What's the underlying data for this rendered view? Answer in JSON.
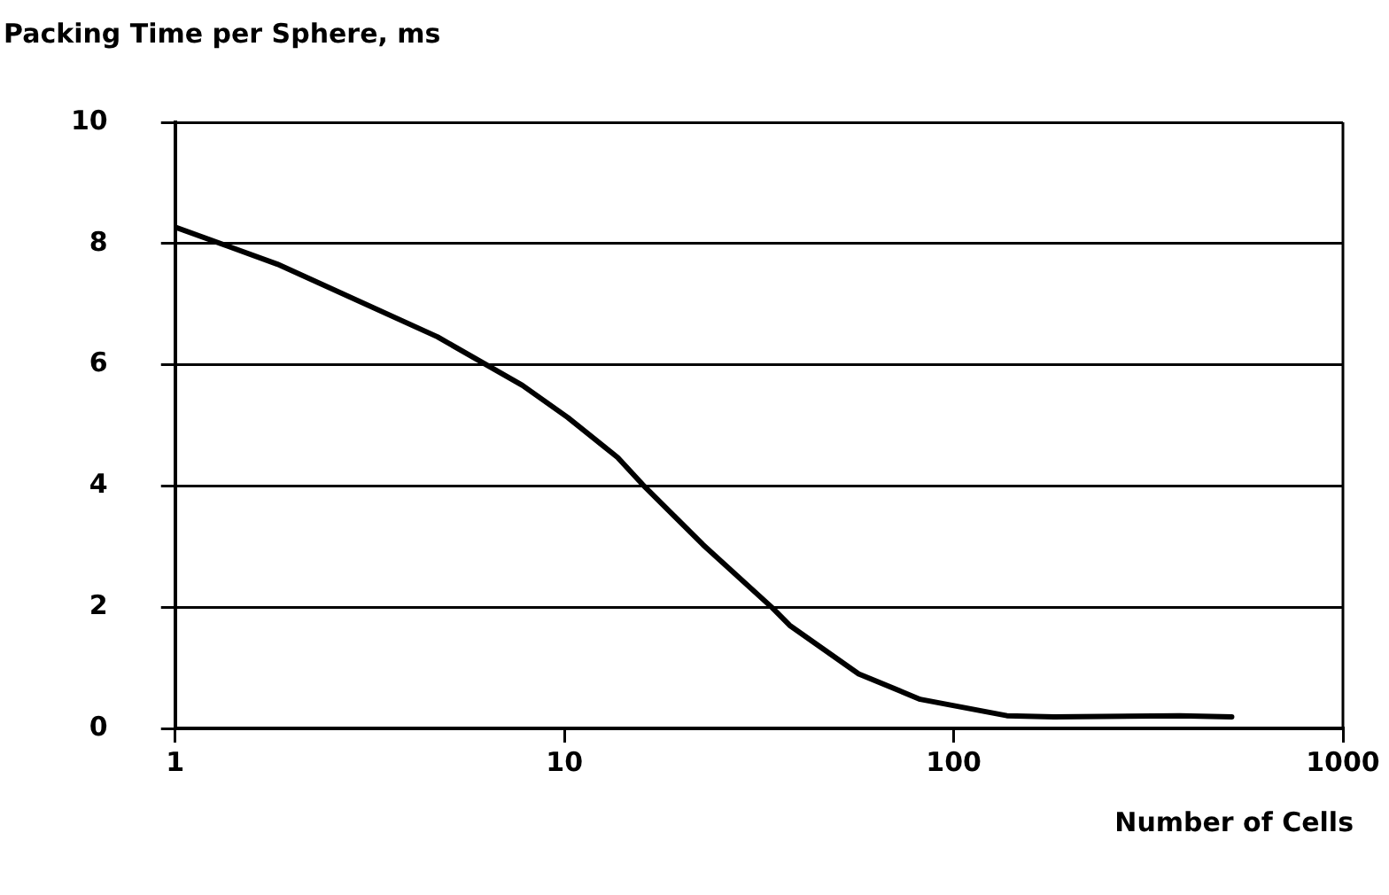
{
  "chart_data": {
    "type": "line",
    "ylabel": "Packing Time per Sphere, ms",
    "xlabel": "Number of Cells",
    "x": [
      1,
      1.83,
      4.72,
      7.8,
      10.2,
      13.7,
      15.9,
      22.7,
      34.2,
      37.9,
      57,
      82,
      137,
      181,
      381,
      518
    ],
    "series": [
      {
        "color": "#000000",
        "values": [
          8.27,
          7.66,
          6.46,
          5.66,
          5.13,
          4.47,
          4.02,
          3.03,
          1.99,
          1.7,
          0.9,
          0.48,
          0.21,
          0.19,
          0.21,
          0.19
        ]
      }
    ],
    "log": "x",
    "xlim": [
      1,
      1000
    ],
    "xticks": [
      1,
      10,
      100,
      1000
    ],
    "ylim": [
      0,
      10
    ],
    "yticks": [
      0,
      2,
      4,
      6,
      8,
      10
    ],
    "grid": "y",
    "legend": false,
    "marker": "none",
    "line_style": "solid"
  }
}
